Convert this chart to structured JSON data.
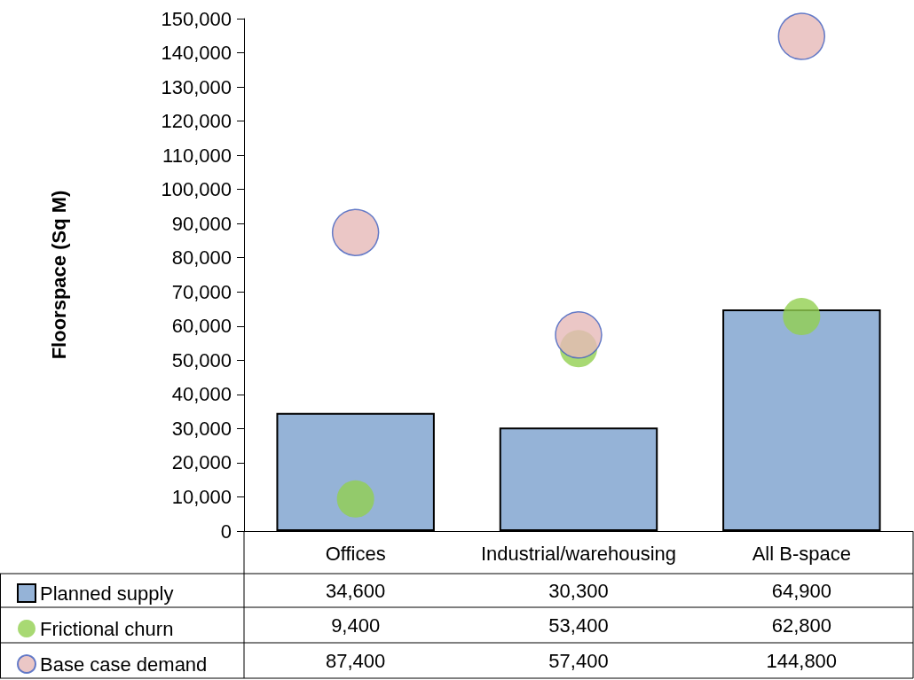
{
  "chart_data": {
    "type": "bar",
    "ylabel": "Floorspace (Sq M)",
    "categories": [
      "Offices",
      "Industrial/warehousing",
      "All B-space"
    ],
    "series": [
      {
        "name": "Planned supply",
        "color": "#95b3d7",
        "values": [
          34600,
          30300,
          64900
        ],
        "value_labels": [
          "34,600",
          "30,300",
          "64,900"
        ]
      },
      {
        "name": "Frictional churn",
        "type": "scatter",
        "color": "#92d050",
        "values": [
          9400,
          53400,
          62800
        ],
        "value_labels": [
          "9,400",
          "53,400",
          "62,800"
        ]
      },
      {
        "name": "Base case demand",
        "type": "scatter",
        "color": "#e6b9b8",
        "values": [
          87400,
          57400,
          144800
        ],
        "value_labels": [
          "87,400",
          "57,400",
          "144,800"
        ]
      }
    ],
    "ylim": [
      0,
      150000
    ],
    "yticks": [
      {
        "value": 0,
        "label": "0"
      },
      {
        "value": 10000,
        "label": "10,000"
      },
      {
        "value": 20000,
        "label": "20,000"
      },
      {
        "value": 30000,
        "label": "30,000"
      },
      {
        "value": 40000,
        "label": "40,000"
      },
      {
        "value": 50000,
        "label": "50,000"
      },
      {
        "value": 60000,
        "label": "60,000"
      },
      {
        "value": 70000,
        "label": "70,000"
      },
      {
        "value": 80000,
        "label": "80,000"
      },
      {
        "value": 90000,
        "label": "90,000"
      },
      {
        "value": 100000,
        "label": "100,000"
      },
      {
        "value": 110000,
        "label": "110,000"
      },
      {
        "value": 120000,
        "label": "120,000"
      },
      {
        "value": 130000,
        "label": "130,000"
      },
      {
        "value": 140000,
        "label": "140,000"
      },
      {
        "value": 150000,
        "label": "150,000"
      }
    ],
    "grid": false,
    "legend": "bottom left",
    "marker": "circle"
  }
}
